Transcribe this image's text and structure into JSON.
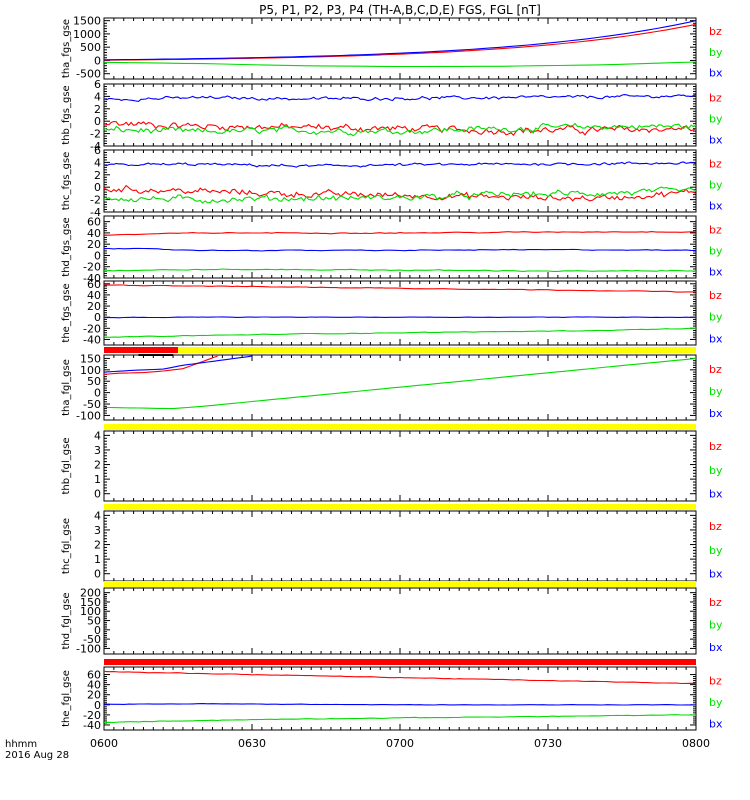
{
  "title": "P5, P1, P2, P3, P4 (TH-A,B,C,D,E) FGS, FGL [nT]",
  "footer": {
    "label": "hhmm",
    "date": "2016 Aug 28"
  },
  "x_axis": {
    "ticks": [
      "0600",
      "0630",
      "0700",
      "0730",
      "0800"
    ],
    "range_min": [
      0,
      120
    ]
  },
  "colors": {
    "bz": "#ff0000",
    "by": "#00dd00",
    "bx": "#0000ff",
    "bar_yellow": "#ffff00",
    "bar_red": "#ff0000",
    "bar_black": "#000000"
  },
  "chart_data": [
    {
      "type": "line",
      "panel": "tha_fgs_gse",
      "ylabel": "tha_fgs_gse",
      "ylim": [
        -700,
        1600
      ],
      "yticks": [
        "1500",
        "1000",
        "500",
        "0",
        "-500"
      ],
      "ytick_values": [
        1500,
        1000,
        500,
        0,
        -500
      ],
      "legend": [
        "bz",
        "by",
        "bx"
      ],
      "series": [
        {
          "name": "bz",
          "shape": "exp",
          "start": 10,
          "end": 1360,
          "noise": 0,
          "step": 2
        },
        {
          "name": "by",
          "shape": "flat",
          "values": [
            -70,
            -120,
            -200,
            -230,
            -220,
            -170,
            -60
          ],
          "noise": 0,
          "step": 4
        },
        {
          "name": "bx",
          "shape": "exp",
          "start": 25,
          "end": 1500,
          "noise": 0,
          "step": 2
        }
      ]
    },
    {
      "type": "line",
      "panel": "thb_fgs_gse",
      "ylabel": "thb_fgs_gse",
      "ylim": [
        -4,
        6
      ],
      "yticks": [
        "6",
        "4",
        "2",
        "0",
        "-2",
        "-4"
      ],
      "ytick_values": [
        6,
        4,
        2,
        0,
        -2,
        -4
      ],
      "legend": [
        "bz",
        "by",
        "bx"
      ],
      "series": [
        {
          "name": "bz",
          "shape": "flat",
          "values": [
            -0.3,
            -0.8,
            -1.0,
            -1.2,
            -1.5,
            -1.4,
            -1.2
          ],
          "noise": 0.8,
          "step": 0.5
        },
        {
          "name": "by",
          "shape": "flat",
          "values": [
            -1.4,
            -1.7,
            -1.5,
            -1.6,
            -1.2,
            -0.9,
            -0.8
          ],
          "noise": 0.7,
          "step": 0.5
        },
        {
          "name": "bx",
          "shape": "flat",
          "values": [
            3.5,
            3.8,
            3.6,
            3.7,
            3.8,
            3.9,
            4.1
          ],
          "noise": 0.35,
          "step": 0.5
        }
      ]
    },
    {
      "type": "line",
      "panel": "thc_fgs_gse",
      "ylabel": "thc_fgs_gse",
      "ylim": [
        -4,
        6
      ],
      "yticks": [
        "6",
        "4",
        "2",
        "0",
        "-2",
        "-4"
      ],
      "ytick_values": [
        6,
        4,
        2,
        0,
        -2,
        -4
      ],
      "legend": [
        "bz",
        "by",
        "bx"
      ],
      "series": [
        {
          "name": "bz",
          "shape": "flat",
          "values": [
            -0.2,
            -0.7,
            -1.1,
            -1.3,
            -1.6,
            -1.8,
            -0.8
          ],
          "noise": 0.7,
          "step": 0.5
        },
        {
          "name": "by",
          "shape": "flat",
          "values": [
            -1.8,
            -2.0,
            -1.8,
            -1.7,
            -1.2,
            -1.0,
            -0.6
          ],
          "noise": 0.7,
          "step": 0.5
        },
        {
          "name": "bx",
          "shape": "flat",
          "values": [
            3.6,
            3.7,
            3.4,
            3.6,
            3.7,
            3.8,
            3.9
          ],
          "noise": 0.3,
          "step": 0.5
        }
      ]
    },
    {
      "type": "line",
      "panel": "thd_fgs_gse",
      "ylabel": "thd_fgs_gse",
      "ylim": [
        -40,
        70
      ],
      "yticks": [
        "60",
        "40",
        "20",
        "0",
        "-20",
        "-40"
      ],
      "ytick_values": [
        60,
        40,
        20,
        0,
        -20,
        -40
      ],
      "legend": [
        "bz",
        "by",
        "bx"
      ],
      "series": [
        {
          "name": "bz",
          "shape": "flat",
          "values": [
            36,
            40,
            40,
            40,
            41,
            42,
            42
          ],
          "noise": 1.2,
          "step": 1
        },
        {
          "name": "by",
          "shape": "flat",
          "values": [
            -27,
            -25,
            -25,
            -26,
            -27,
            -28,
            -27
          ],
          "noise": 1.2,
          "step": 1
        },
        {
          "name": "bx",
          "shape": "flat",
          "values": [
            13,
            9,
            9,
            9,
            10,
            10,
            9
          ],
          "noise": 1.0,
          "step": 1
        }
      ]
    },
    {
      "type": "line",
      "panel": "the_fgs_gse",
      "ylabel": "the_fgs_gse",
      "ylim": [
        -50,
        65
      ],
      "yticks": [
        "60",
        "40",
        "20",
        "0",
        "-20",
        "-40"
      ],
      "ytick_values": [
        60,
        40,
        20,
        0,
        -20,
        -40
      ],
      "legend": [
        "bz",
        "by",
        "bx"
      ],
      "series": [
        {
          "name": "bz",
          "shape": "flat",
          "values": [
            58,
            56,
            54,
            52,
            50,
            48,
            45
          ],
          "noise": 0.8,
          "step": 1
        },
        {
          "name": "by",
          "shape": "flat",
          "values": [
            -36,
            -33,
            -30,
            -28,
            -26,
            -24,
            -20
          ],
          "noise": 0.8,
          "step": 1
        },
        {
          "name": "bx",
          "shape": "flat",
          "values": [
            -1,
            0,
            0,
            0,
            0,
            0,
            0
          ],
          "noise": 0.6,
          "step": 1
        }
      ]
    },
    {
      "type": "line",
      "panel": "tha_fgl_gse",
      "ylabel": "tha_fgl_gse",
      "ylim": [
        -120,
        165
      ],
      "yticks": [
        "150",
        "100",
        "50",
        "0",
        "-50",
        "-100"
      ],
      "ytick_values": [
        150,
        100,
        50,
        0,
        -50,
        -100
      ],
      "legend": [
        "bz",
        "by",
        "bx"
      ],
      "series": [
        {
          "name": "bz",
          "points": [
            [
              0,
              80
            ],
            [
              3,
              85
            ],
            [
              8,
              88
            ],
            [
              12,
              95
            ],
            [
              16,
              105
            ],
            [
              23,
              160
            ]
          ],
          "noise": 0,
          "step": 1
        },
        {
          "name": "by",
          "points": [
            [
              0,
              -65
            ],
            [
              14,
              -70
            ],
            [
              20,
              -60
            ],
            [
              120,
              150
            ]
          ],
          "noise": 0,
          "step": 1
        },
        {
          "name": "bx",
          "points": [
            [
              0,
              90
            ],
            [
              6,
              98
            ],
            [
              12,
              103
            ],
            [
              16,
              120
            ],
            [
              30,
              160
            ]
          ],
          "noise": 0,
          "step": 1
        }
      ]
    },
    {
      "type": "line",
      "panel": "thb_fgl_gse",
      "ylabel": "thb_fgl_gse",
      "ylim": [
        -0.5,
        4.3
      ],
      "yticks": [
        "4",
        "3",
        "2",
        "1",
        "0"
      ],
      "ytick_values": [
        4,
        3,
        2,
        1,
        0
      ],
      "legend": [
        "bz",
        "by",
        "bx"
      ],
      "series": []
    },
    {
      "type": "line",
      "panel": "thc_fgl_gse",
      "ylabel": "thc_fgl_gse",
      "ylim": [
        -0.5,
        4.3
      ],
      "yticks": [
        "4",
        "3",
        "2",
        "1",
        "0"
      ],
      "ytick_values": [
        4,
        3,
        2,
        1,
        0
      ],
      "legend": [
        "bz",
        "by",
        "bx"
      ],
      "series": []
    },
    {
      "type": "line",
      "panel": "thd_fgl_gse",
      "ylabel": "thd_fgl_gse",
      "ylim": [
        -130,
        225
      ],
      "yticks": [
        "200",
        "150",
        "100",
        "50",
        "0",
        "-50",
        "-100"
      ],
      "ytick_values": [
        200,
        150,
        100,
        50,
        0,
        -50,
        -100
      ],
      "legend": [
        "bz",
        "by",
        "bx"
      ],
      "series": []
    },
    {
      "type": "line",
      "panel": "the_fgl_gse",
      "ylabel": "the_fgl_gse",
      "ylim": [
        -50,
        75
      ],
      "yticks": [
        "60",
        "40",
        "20",
        "0",
        "-20",
        "-40"
      ],
      "ytick_values": [
        60,
        40,
        20,
        0,
        -20,
        -40
      ],
      "legend": [
        "bz",
        "by",
        "bx"
      ],
      "series": [
        {
          "name": "bz",
          "shape": "flat",
          "values": [
            66,
            62,
            58,
            54,
            50,
            46,
            42
          ],
          "noise": 0.8,
          "step": 1
        },
        {
          "name": "by",
          "shape": "flat",
          "values": [
            -35,
            -31,
            -28,
            -26,
            -24,
            -22,
            -20
          ],
          "noise": 0.8,
          "step": 1
        },
        {
          "name": "bx",
          "shape": "flat",
          "values": [
            1,
            2,
            1,
            0,
            0,
            0,
            0
          ],
          "noise": 0.6,
          "step": 1
        }
      ]
    }
  ],
  "status_bars": [
    {
      "after_panel": 4,
      "segments": [
        {
          "color": "red",
          "from": 0,
          "to": 15
        },
        {
          "color": "yellow",
          "from": 15,
          "to": 120
        }
      ],
      "black_mark": [
        7,
        14
      ]
    },
    {
      "after_panel": 5,
      "segments": [
        {
          "color": "yellow",
          "from": 0,
          "to": 120
        }
      ]
    },
    {
      "after_panel": 6,
      "segments": [
        {
          "color": "yellow",
          "from": 0,
          "to": 120
        }
      ]
    },
    {
      "after_panel": 7,
      "segments": [
        {
          "color": "yellow",
          "from": 0,
          "to": 120
        }
      ]
    },
    {
      "after_panel": 8,
      "segments": [
        {
          "color": "red",
          "from": 0,
          "to": 120
        }
      ]
    }
  ]
}
